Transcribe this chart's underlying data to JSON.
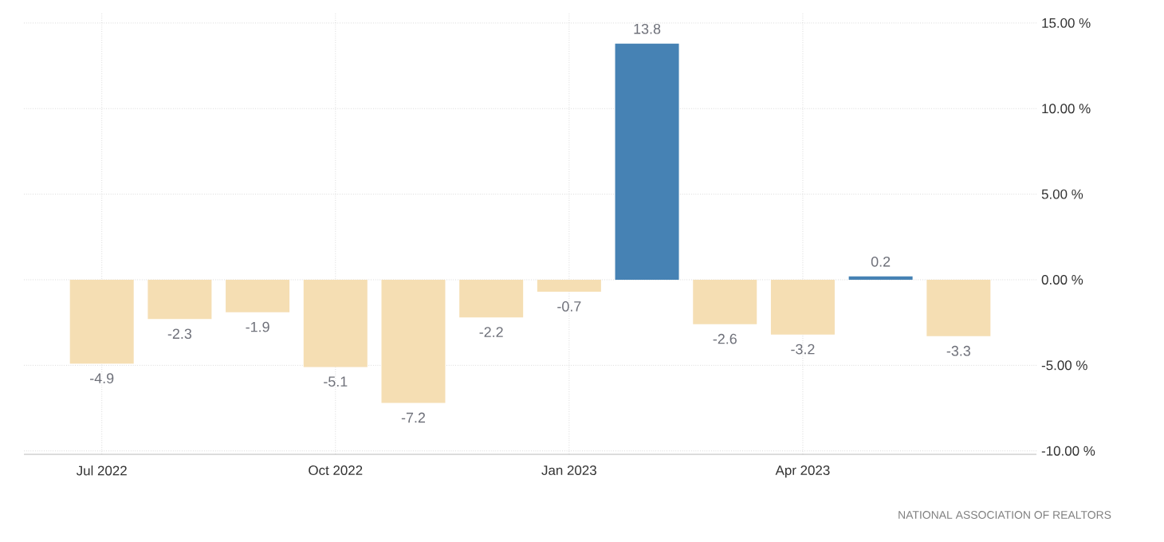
{
  "chart_data": {
    "type": "bar",
    "categories": [
      "Jul 2022",
      null,
      null,
      "Oct 2022",
      null,
      null,
      "Jan 2023",
      null,
      null,
      "Apr 2023",
      null,
      null
    ],
    "values": [
      -4.9,
      -2.3,
      -1.9,
      -5.1,
      -7.2,
      -2.2,
      -0.7,
      13.8,
      -2.6,
      -3.2,
      0.2,
      -3.3
    ],
    "colors": [
      "#f5deb3",
      "#f5deb3",
      "#f5deb3",
      "#f5deb3",
      "#f5deb3",
      "#f5deb3",
      "#f5deb3",
      "#4682b4",
      "#f5deb3",
      "#f5deb3",
      "#4682b4",
      "#f5deb3"
    ],
    "ylim": [
      -10.2,
      15.6
    ],
    "yticks": [
      {
        "value": -10,
        "label": "-10.00 %"
      },
      {
        "value": -5,
        "label": "-5.00 %"
      },
      {
        "value": 0,
        "label": "0.00 %"
      },
      {
        "value": 5,
        "label": "5.00 %"
      },
      {
        "value": 10,
        "label": "10.00 %"
      },
      {
        "value": 15,
        "label": "15.00 %"
      }
    ],
    "grid": true,
    "data_labels": true,
    "annotations": [
      "NATIONAL ASSOCIATION OF REALTORS"
    ]
  }
}
